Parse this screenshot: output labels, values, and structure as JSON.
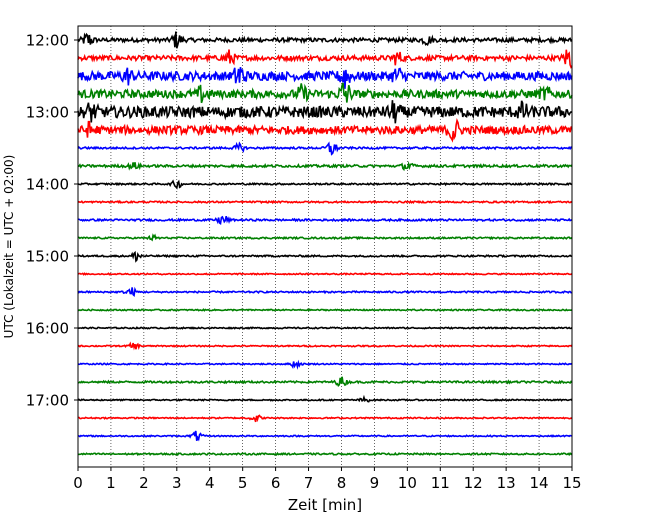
{
  "chart_data": {
    "type": "line",
    "title": "",
    "xlabel": "Zeit  [min]",
    "ylabel": "UTC (Lokalzeit = UTC + 02:00)",
    "xlim": [
      0,
      15
    ],
    "x_ticks": [
      "0",
      "1",
      "2",
      "3",
      "4",
      "5",
      "6",
      "7",
      "8",
      "9",
      "10",
      "11",
      "12",
      "13",
      "14",
      "15"
    ],
    "y_ticks": [
      {
        "label": "12:00",
        "trace": 0
      },
      {
        "label": "13:00",
        "trace": 4
      },
      {
        "label": "14:00",
        "trace": 8
      },
      {
        "label": "15:00",
        "trace": 12
      },
      {
        "label": "16:00",
        "trace": 16
      },
      {
        "label": "17:00",
        "trace": 20
      }
    ],
    "trace_interval_min": 15,
    "trace_count": 24,
    "color_cycle": [
      "#000000",
      "#ff0000",
      "#0000ff",
      "#008000"
    ],
    "grid_x": "dotted",
    "traces": [
      {
        "start": "12:00",
        "amp": 0.25,
        "events": [
          {
            "x": 0.3,
            "amp": 0.9
          },
          {
            "x": 3.0,
            "amp": 1.0
          },
          {
            "x": 10.6,
            "amp": 0.5
          }
        ]
      },
      {
        "start": "12:15",
        "amp": 0.3,
        "events": [
          {
            "x": 4.6,
            "amp": 0.9
          },
          {
            "x": 9.7,
            "amp": 0.8
          },
          {
            "x": 14.9,
            "amp": 1.5
          }
        ]
      },
      {
        "start": "12:30",
        "amp": 0.55,
        "events": [
          {
            "x": 1.5,
            "amp": 0.8
          },
          {
            "x": 4.9,
            "amp": 1.6
          },
          {
            "x": 8.1,
            "amp": 1.5
          },
          {
            "x": 9.7,
            "amp": 0.9
          }
        ]
      },
      {
        "start": "12:45",
        "amp": 0.5,
        "events": [
          {
            "x": 3.8,
            "amp": 1.0
          },
          {
            "x": 6.8,
            "amp": 0.9
          },
          {
            "x": 8.1,
            "amp": 1.8
          },
          {
            "x": 14.2,
            "amp": 0.7
          }
        ]
      },
      {
        "start": "13:00",
        "amp": 0.7,
        "events": [
          {
            "x": 0.4,
            "amp": 0.9
          },
          {
            "x": 9.6,
            "amp": 1.0
          },
          {
            "x": 13.5,
            "amp": 0.8
          }
        ]
      },
      {
        "start": "13:15",
        "amp": 0.5,
        "events": [
          {
            "x": 0.4,
            "amp": 0.9
          },
          {
            "x": 11.4,
            "amp": 1.6
          }
        ]
      },
      {
        "start": "13:30",
        "amp": 0.12,
        "events": [
          {
            "x": 4.9,
            "amp": 0.5
          },
          {
            "x": 7.7,
            "amp": 1.0
          }
        ]
      },
      {
        "start": "13:45",
        "amp": 0.15,
        "events": [
          {
            "x": 1.7,
            "amp": 0.4
          },
          {
            "x": 10.0,
            "amp": 0.5
          }
        ]
      },
      {
        "start": "14:00",
        "amp": 0.1,
        "events": [
          {
            "x": 3.0,
            "amp": 0.5
          }
        ]
      },
      {
        "start": "14:15",
        "amp": 0.1,
        "events": []
      },
      {
        "start": "14:30",
        "amp": 0.12,
        "events": [
          {
            "x": 4.4,
            "amp": 0.7
          }
        ]
      },
      {
        "start": "14:45",
        "amp": 0.1,
        "events": [
          {
            "x": 2.3,
            "amp": 0.3
          }
        ]
      },
      {
        "start": "15:00",
        "amp": 0.1,
        "events": [
          {
            "x": 1.8,
            "amp": 0.7
          }
        ]
      },
      {
        "start": "15:15",
        "amp": 0.08,
        "events": []
      },
      {
        "start": "15:30",
        "amp": 0.1,
        "events": [
          {
            "x": 1.6,
            "amp": 0.6
          }
        ]
      },
      {
        "start": "15:45",
        "amp": 0.08,
        "events": []
      },
      {
        "start": "16:00",
        "amp": 0.08,
        "events": []
      },
      {
        "start": "16:15",
        "amp": 0.08,
        "events": [
          {
            "x": 1.7,
            "amp": 0.4
          }
        ]
      },
      {
        "start": "16:30",
        "amp": 0.08,
        "events": [
          {
            "x": 6.6,
            "amp": 0.4
          }
        ]
      },
      {
        "start": "16:45",
        "amp": 0.12,
        "events": [
          {
            "x": 8.0,
            "amp": 0.6
          }
        ]
      },
      {
        "start": "17:00",
        "amp": 0.08,
        "events": [
          {
            "x": 8.7,
            "amp": 0.3
          }
        ]
      },
      {
        "start": "17:15",
        "amp": 0.08,
        "events": [
          {
            "x": 5.4,
            "amp": 0.5
          }
        ]
      },
      {
        "start": "17:30",
        "amp": 0.08,
        "events": [
          {
            "x": 3.6,
            "amp": 0.6
          }
        ]
      },
      {
        "start": "17:45",
        "amp": 0.1,
        "events": []
      }
    ]
  }
}
